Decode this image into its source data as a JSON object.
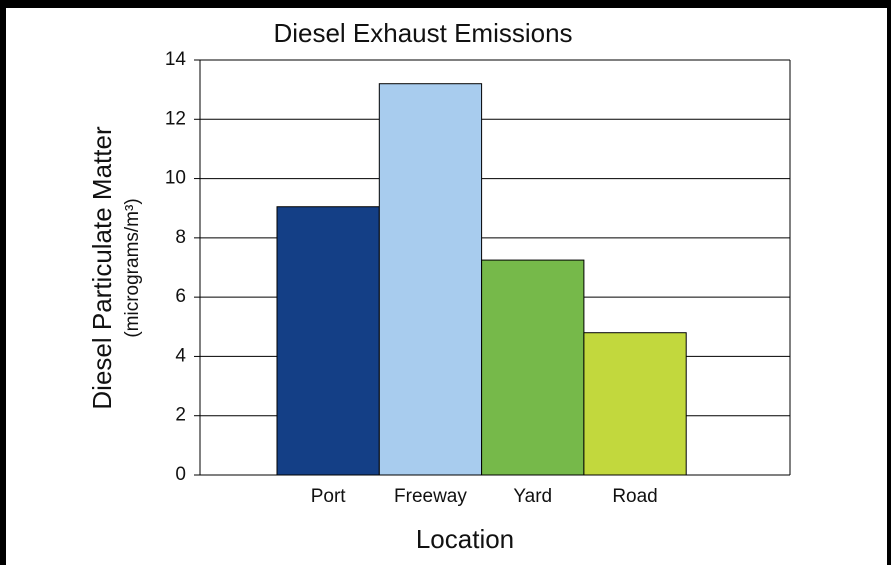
{
  "chart_data": {
    "type": "bar",
    "title": "Diesel Exhaust Emissions",
    "x_label": "Location",
    "y_label": "Diesel Particulate Matter",
    "y_label_sub": "(micrograms/m³)",
    "categories": [
      "Port",
      "Freeway",
      "Yard",
      "Road"
    ],
    "values": [
      9.05,
      13.2,
      7.25,
      4.8
    ],
    "colors": [
      "#143f86",
      "#a8ccee",
      "#76b94a",
      "#c2d83d"
    ],
    "ylim": [
      0,
      14
    ],
    "yticks": [
      0,
      2,
      4,
      6,
      8,
      10,
      12,
      14
    ],
    "grid": true
  }
}
